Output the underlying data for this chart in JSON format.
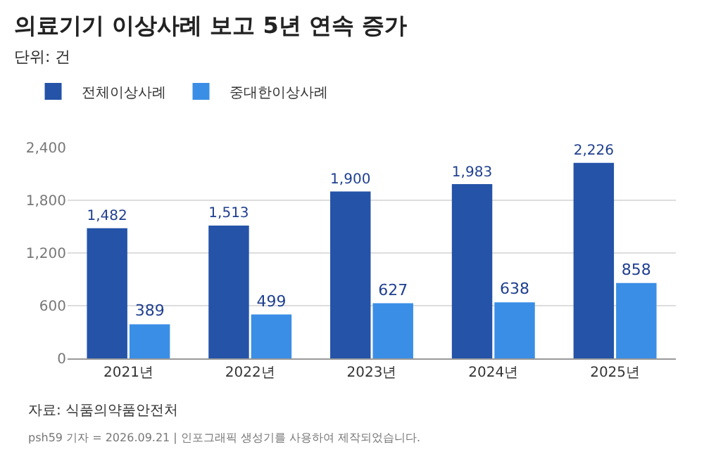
{
  "chart_data": {
    "type": "bar",
    "title": "의료기기 이상사례 보고 5년 연속 증가",
    "subtitle": "단위: 건",
    "categories": [
      "2021년",
      "2022년",
      "2023년",
      "2024년",
      "2025년"
    ],
    "series": [
      {
        "name": "전체이상사례",
        "color": "#2453a8",
        "values": [
          1482,
          1513,
          1900,
          1983,
          2226
        ],
        "value_labels": [
          "1,482",
          "1,513",
          "1,900",
          "1,983",
          "2,226"
        ]
      },
      {
        "name": "중대한이상사례",
        "color": "#3a8ee6",
        "values": [
          389,
          499,
          627,
          638,
          858
        ],
        "value_labels": [
          "389",
          "499",
          "627",
          "638",
          "858"
        ]
      }
    ],
    "ylim": [
      0,
      2400
    ],
    "yticks": [
      0,
      600,
      {
        "value": 1200,
        "label": "1,200"
      },
      {
        "value": 1800,
        "label": "1,800"
      },
      {
        "value": 2400,
        "label": "2,400"
      }
    ],
    "grid": "y",
    "legend": "top left",
    "annotations": [
      "자료: 식품의약품안전처",
      "psh59 기자 = 2026.09.21 | 인포그래픽 생성기를 사용하여 제작되었습니다."
    ]
  }
}
